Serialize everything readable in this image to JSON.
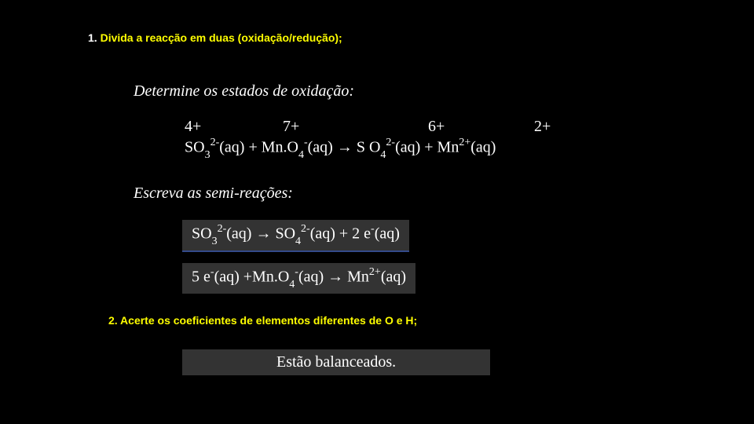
{
  "background": "#000000",
  "accent_yellow": "#ffff00",
  "box_bg": "#333333",
  "underline_color": "#334a8a",
  "h1_prefix": "1. ",
  "h1_text": "Divida a reacção em duas (oxidação/redução);",
  "instr1": "Determine os estados de oxidação:",
  "ox": {
    "a": "4+",
    "b": "7+",
    "c": "6+",
    "d": "2+"
  },
  "eq_main_html": "SO<sub>3</sub><sup>2-</sup>(aq) + Mn.O<sub>4</sub><sup>-</sup>(aq)  →   S O<sub>4</sub><sup>2-</sup>(aq) +  Mn<sup>2+</sup>(aq)",
  "instr2": "Escreva as semi-reações:",
  "semi1_html": "SO<sub>3</sub><sup>2-</sup>(aq)  →   SO<sub>4</sub><sup>2-</sup>(aq) + 2 e<sup>-</sup>(aq)",
  "semi2_html": "5 e<sup>-</sup>(aq) +Mn.O<sub>4</sub><sup>-</sup>(aq)   →   Mn<sup>2+</sup>(aq)",
  "h2_text": "2. Acerte os coeficientes de elementos diferentes de O e H;",
  "balanced": "Estão balanceados."
}
